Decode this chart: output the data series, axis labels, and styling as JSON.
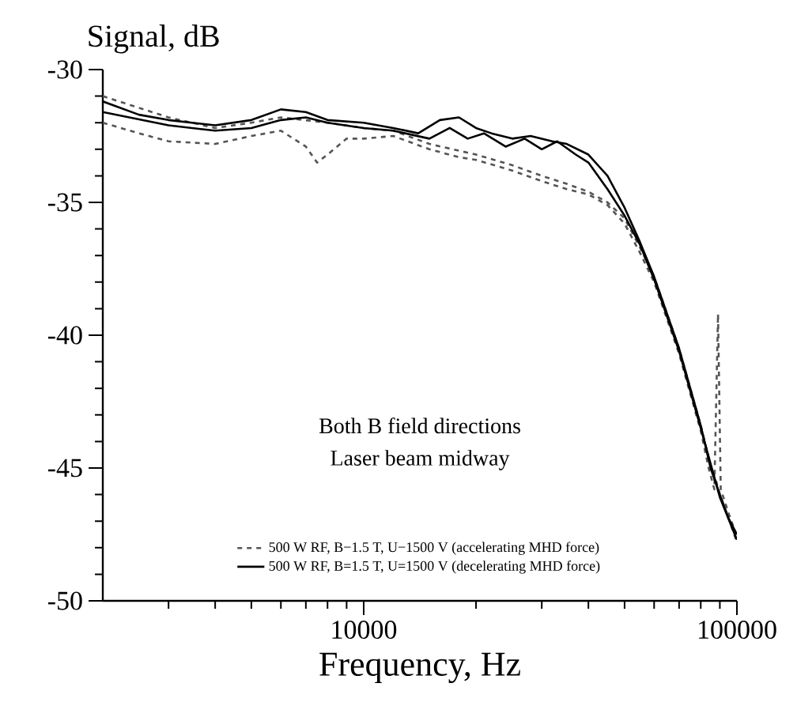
{
  "chart_data": {
    "type": "line",
    "log": "x",
    "xlabel": "Frequency, Hz",
    "ylabel": "Signal, dB",
    "legend": "bottom",
    "annotations": [
      "Both B field directions",
      "Laser beam midway"
    ],
    "xlim": [
      2000,
      100000
    ],
    "xticks": [
      {
        "value": 3000,
        "label": null
      },
      {
        "value": 4000,
        "label": null
      },
      {
        "value": 5000,
        "label": null
      },
      {
        "value": 6000,
        "label": null
      },
      {
        "value": 7000,
        "label": null
      },
      {
        "value": 8000,
        "label": null
      },
      {
        "value": 9000,
        "label": null
      },
      10000,
      {
        "value": 20000,
        "label": null
      },
      {
        "value": 30000,
        "label": null
      },
      {
        "value": 40000,
        "label": null
      },
      {
        "value": 50000,
        "label": null
      },
      {
        "value": 60000,
        "label": null
      },
      {
        "value": 70000,
        "label": null
      },
      {
        "value": 80000,
        "label": null
      },
      {
        "value": 90000,
        "label": null
      },
      100000
    ],
    "ylim": [
      -50,
      -30
    ],
    "yticks": [
      -50,
      {
        "value": -49,
        "label": null
      },
      {
        "value": -48,
        "label": null
      },
      {
        "value": -47,
        "label": null
      },
      {
        "value": -46,
        "label": null
      },
      -45,
      {
        "value": -44,
        "label": null
      },
      {
        "value": -43,
        "label": null
      },
      {
        "value": -42,
        "label": null
      },
      {
        "value": -41,
        "label": null
      },
      -40,
      {
        "value": -39,
        "label": null
      },
      {
        "value": -38,
        "label": null
      },
      {
        "value": -37,
        "label": null
      },
      {
        "value": -36,
        "label": null
      },
      -35,
      {
        "value": -34,
        "label": null
      },
      {
        "value": -33,
        "label": null
      },
      {
        "value": -32,
        "label": null
      },
      {
        "value": -31,
        "label": null
      },
      -30
    ],
    "series": [
      {
        "name": "500 W RF, B−1.5 T, U−1500 V (accelerating MHD force)",
        "color": "#555555",
        "line_style": "dashed",
        "x": [
          2000,
          2500,
          3000,
          4000,
          5000,
          6000,
          7000,
          7500,
          8000,
          9000,
          10000,
          12000,
          15000,
          18000,
          20000,
          25000,
          30000,
          35000,
          40000,
          45000,
          50000,
          55000,
          60000,
          65000,
          70000,
          75000,
          80000,
          84000,
          87000,
          89000,
          90500,
          95000,
          100000
        ],
        "values": [
          -32.0,
          -32.4,
          -32.7,
          -32.8,
          -32.5,
          -32.3,
          -32.9,
          -33.5,
          -33.2,
          -32.6,
          -32.6,
          -32.5,
          -33.0,
          -33.3,
          -33.4,
          -33.8,
          -34.2,
          -34.5,
          -34.7,
          -35.1,
          -35.8,
          -36.9,
          -38.0,
          -39.4,
          -40.7,
          -42.2,
          -43.6,
          -45.0,
          -45.8,
          -39.2,
          -45.8,
          -46.7,
          -47.6
        ]
      },
      {
        "color": "#555555",
        "line_style": "dashed",
        "x": [
          2000,
          3000,
          4000,
          5000,
          6000,
          8000,
          10000,
          12000,
          15000,
          20000,
          25000,
          30000,
          35000,
          40000,
          45000,
          50000,
          55000,
          60000,
          65000,
          70000,
          75000,
          80000,
          85000,
          88000,
          90000,
          95000,
          100000
        ],
        "values": [
          -31.0,
          -31.8,
          -32.2,
          -32.0,
          -31.8,
          -32.0,
          -32.2,
          -32.3,
          -32.8,
          -33.2,
          -33.6,
          -34.0,
          -34.3,
          -34.6,
          -35.0,
          -35.6,
          -36.7,
          -37.8,
          -39.2,
          -40.5,
          -42.0,
          -43.4,
          -44.9,
          -45.5,
          -46.0,
          -46.9,
          -47.8
        ]
      },
      {
        "name": "500 W RF, B=1.5 T, U=1500 V (decelerating MHD force)",
        "color": "#000000",
        "line_style": "solid",
        "x": [
          2000,
          2500,
          3000,
          4000,
          5000,
          6000,
          7000,
          8000,
          10000,
          12000,
          14000,
          16000,
          18000,
          20000,
          22000,
          25000,
          28000,
          32000,
          35000,
          40000,
          45000,
          50000,
          55000,
          60000,
          65000,
          70000,
          75000,
          80000,
          85000,
          90000,
          95000,
          100000
        ],
        "values": [
          -31.2,
          -31.7,
          -31.9,
          -32.1,
          -31.9,
          -31.5,
          -31.6,
          -31.9,
          -32.0,
          -32.2,
          -32.4,
          -31.9,
          -31.8,
          -32.2,
          -32.4,
          -32.6,
          -32.5,
          -32.7,
          -32.8,
          -33.2,
          -34.0,
          -35.2,
          -36.5,
          -37.8,
          -39.2,
          -40.5,
          -42.0,
          -43.4,
          -45.0,
          -46.0,
          -46.9,
          -47.5
        ]
      },
      {
        "color": "#000000",
        "line_style": "solid",
        "x": [
          2000,
          3000,
          4000,
          5000,
          6000,
          7000,
          8000,
          10000,
          12000,
          15000,
          17000,
          19000,
          21000,
          24000,
          27000,
          30000,
          33000,
          37000,
          40000,
          45000,
          50000,
          55000,
          60000,
          65000,
          70000,
          80000,
          90000,
          100000
        ],
        "values": [
          -31.6,
          -32.1,
          -32.3,
          -32.2,
          -31.9,
          -31.8,
          -32.0,
          -32.2,
          -32.3,
          -32.6,
          -32.2,
          -32.6,
          -32.4,
          -32.9,
          -32.6,
          -33.0,
          -32.7,
          -33.2,
          -33.5,
          -34.5,
          -35.5,
          -36.6,
          -37.9,
          -39.3,
          -40.6,
          -43.5,
          -46.1,
          -47.7
        ]
      }
    ]
  }
}
